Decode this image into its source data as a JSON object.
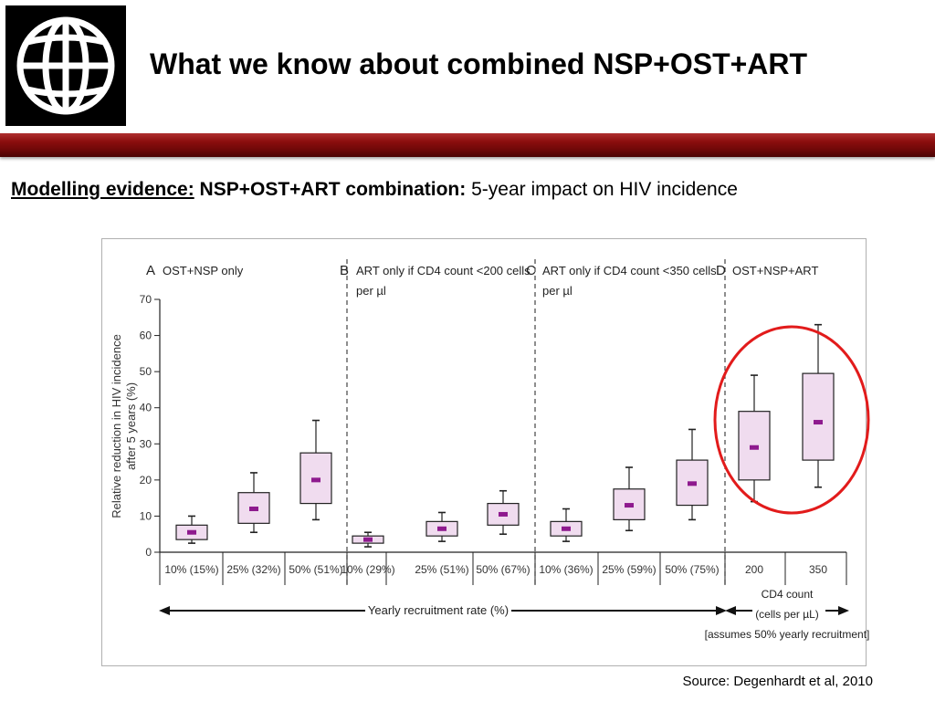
{
  "slide": {
    "title": "What we know about combined NSP+OST+ART",
    "subtitle_lead": "Modelling evidence:",
    "subtitle_combo": "NSP+OST+ART combination:",
    "subtitle_rest": "5-year impact on HIV incidence",
    "source": "Source: Degenhardt et al, 2010"
  },
  "colors": {
    "banner": "#8b0e0e",
    "box_fill": "#f0dcef",
    "median_mark": "#8e1a8e",
    "highlight_circle": "#e21b1b"
  },
  "chart_data": {
    "type": "boxplot",
    "ylabel": "Relative reduction in HIV incidence after 5 years (%)",
    "ylim": [
      0,
      70
    ],
    "yticks": [
      0,
      10,
      20,
      30,
      40,
      50,
      60,
      70
    ],
    "panels": [
      {
        "letter": "A",
        "title_lines": [
          "OST+NSP only"
        ]
      },
      {
        "letter": "B",
        "title_lines": [
          "ART only if CD4 count <200 cells",
          "per µl"
        ]
      },
      {
        "letter": "C",
        "title_lines": [
          "ART only if CD4 count <350 cells",
          "per µl"
        ]
      },
      {
        "letter": "D",
        "title_lines": [
          "OST+NSP+ART"
        ]
      }
    ],
    "boxes": [
      {
        "panel": "A",
        "label": "10% (15%)",
        "min": 2.5,
        "q1": 3.5,
        "median": 5.5,
        "q3": 7.5,
        "max": 10
      },
      {
        "panel": "A",
        "label": "25% (32%)",
        "min": 5.5,
        "q1": 8,
        "median": 12,
        "q3": 16.5,
        "max": 22
      },
      {
        "panel": "A",
        "label": "50% (51%)",
        "min": 9,
        "q1": 13.5,
        "median": 20,
        "q3": 27.5,
        "max": 36.5
      },
      {
        "panel": "B",
        "label": "10% (29%)",
        "min": 1.5,
        "q1": 2.5,
        "median": 3.5,
        "q3": 4.5,
        "max": 5.5
      },
      {
        "panel": "B",
        "label": "25% (51%)",
        "min": 3,
        "q1": 4.5,
        "median": 6.5,
        "q3": 8.5,
        "max": 11
      },
      {
        "panel": "B",
        "label": "50% (67%)",
        "min": 5,
        "q1": 7.5,
        "median": 10.5,
        "q3": 13.5,
        "max": 17
      },
      {
        "panel": "C",
        "label": "10% (36%)",
        "min": 3,
        "q1": 4.5,
        "median": 6.5,
        "q3": 8.5,
        "max": 12
      },
      {
        "panel": "C",
        "label": "25% (59%)",
        "min": 6,
        "q1": 9,
        "median": 13,
        "q3": 17.5,
        "max": 23.5
      },
      {
        "panel": "C",
        "label": "50% (75%)",
        "min": 9,
        "q1": 13,
        "median": 19,
        "q3": 25.5,
        "max": 34
      },
      {
        "panel": "D",
        "label": "200",
        "min": 14,
        "q1": 20,
        "median": 29,
        "q3": 39,
        "max": 49
      },
      {
        "panel": "D",
        "label": "350",
        "min": 18,
        "q1": 25.5,
        "median": 36,
        "q3": 49.5,
        "max": 63
      }
    ],
    "xaxis_label": "Yearly recruitment rate (%)",
    "cd4_label_lines": [
      "CD4 count",
      "(cells per µL)",
      "[assumes 50% yearly recruitment]"
    ],
    "highlight": "panel D circled in red"
  }
}
